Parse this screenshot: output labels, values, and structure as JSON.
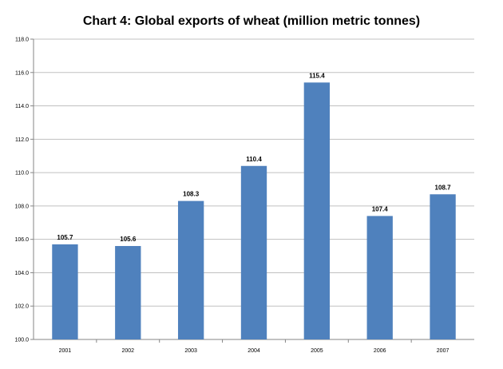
{
  "chart_data": {
    "type": "bar",
    "title": "Chart 4: Global exports of wheat (million metric tonnes)",
    "xlabel": "",
    "ylabel": "",
    "categories": [
      "2001",
      "2002",
      "2003",
      "2004",
      "2005",
      "2006",
      "2007"
    ],
    "values": [
      105.7,
      105.6,
      108.3,
      110.4,
      115.4,
      107.4,
      108.7
    ],
    "data_labels": [
      "105.7",
      "105.6",
      "108.3",
      "110.4",
      "115.4",
      "107.4",
      "108.7"
    ],
    "ylim": [
      100.0,
      118.0
    ],
    "yticks": [
      100.0,
      102.0,
      104.0,
      106.0,
      108.0,
      110.0,
      112.0,
      114.0,
      116.0,
      118.0
    ],
    "ytick_labels": [
      "100.0",
      "102.0",
      "104.0",
      "106.0",
      "108.0",
      "110.0",
      "112.0",
      "114.0",
      "116.0",
      "118.0"
    ],
    "grid": true,
    "legend": "none",
    "bar_color": "#4f81bd",
    "grid_color": "#c0c0c0"
  }
}
